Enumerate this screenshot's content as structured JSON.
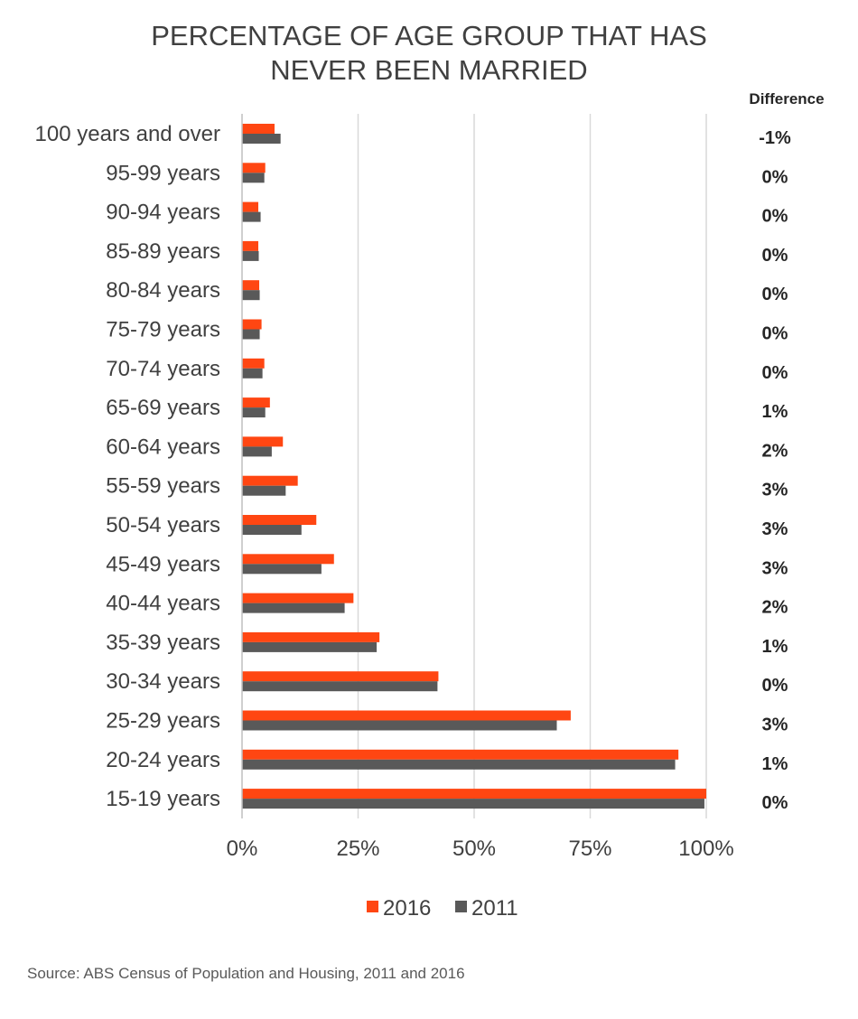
{
  "chart_data": {
    "type": "bar",
    "orientation": "horizontal",
    "title_lines": [
      "PERCENTAGE OF AGE GROUP THAT HAS",
      "NEVER BEEN MARRIED"
    ],
    "categories": [
      "100 years and over",
      "95-99 years",
      "90-94 years",
      "85-89 years",
      "80-84 years",
      "75-79 years",
      "70-74 years",
      "65-69 years",
      "60-64 years",
      "55-59 years",
      "50-54 years",
      "45-49 years",
      "40-44 years",
      "35-39 years",
      "30-34 years",
      "25-29 years",
      "20-24 years",
      "15-19 years"
    ],
    "series": [
      {
        "name": "2016",
        "color": "#ff4612",
        "values": [
          7,
          5,
          3.5,
          3.5,
          3.7,
          4.2,
          4.8,
          6,
          8.8,
          12,
          16,
          19.8,
          24,
          29.6,
          42.3,
          70.8,
          94,
          100
        ]
      },
      {
        "name": "2011",
        "color": "#595959",
        "values": [
          8.3,
          4.8,
          4,
          3.6,
          3.8,
          3.8,
          4.4,
          5,
          6.4,
          9.4,
          12.8,
          17.1,
          22.1,
          29,
          42.1,
          67.8,
          93.3,
          99.6
        ]
      }
    ],
    "xlim": [
      0,
      100
    ],
    "xticks": [
      "0%",
      "25%",
      "50%",
      "75%",
      "100%"
    ],
    "grid": true,
    "legend_position": "bottom",
    "difference_header": "Difference",
    "differences": [
      "-1%",
      "0%",
      "0%",
      "0%",
      "0%",
      "0%",
      "0%",
      "1%",
      "2%",
      "3%",
      "3%",
      "3%",
      "2%",
      "1%",
      "0%",
      "3%",
      "1%",
      "0%"
    ]
  },
  "source": "Source: ABS Census of Population and Housing, 2011 and 2016"
}
